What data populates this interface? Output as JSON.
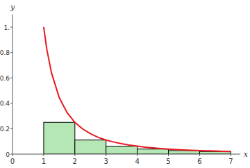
{
  "chart_data": {
    "type": "bar",
    "x_label": "x",
    "y_label": "y",
    "xlim": [
      0,
      7.3
    ],
    "ylim": [
      0,
      1.1
    ],
    "xticks": [
      0,
      1,
      2,
      3,
      4,
      5,
      6,
      7
    ],
    "yticks": [
      0,
      0.2,
      0.4,
      0.6,
      0.8,
      {
        "value": 1,
        "label": "1."
      }
    ],
    "series": [
      {
        "type": "bar",
        "color": "#b5e6b5",
        "bins": [
          1,
          2,
          3,
          4,
          5,
          6,
          7
        ],
        "values": [
          0.25,
          0.111,
          0.0625,
          0.04,
          0.028,
          0.0204
        ]
      },
      {
        "type": "line",
        "color": "#e8191f",
        "x": [
          1,
          1.1,
          1.25,
          1.5,
          1.75,
          2,
          2.25,
          2.5,
          2.75,
          3,
          3.25,
          3.5,
          3.75,
          4,
          4.25,
          4.5,
          4.75,
          5,
          5.25,
          5.5,
          5.75,
          6,
          6.25,
          6.5,
          6.75,
          7
        ],
        "values": [
          1,
          0.826,
          0.64,
          0.444,
          0.327,
          0.25,
          0.198,
          0.16,
          0.132,
          0.111,
          0.095,
          0.082,
          0.071,
          0.0625,
          0.055,
          0.049,
          0.044,
          0.04,
          0.036,
          0.033,
          0.03,
          0.028,
          0.026,
          0.024,
          0.022,
          0.0204
        ]
      }
    ]
  }
}
